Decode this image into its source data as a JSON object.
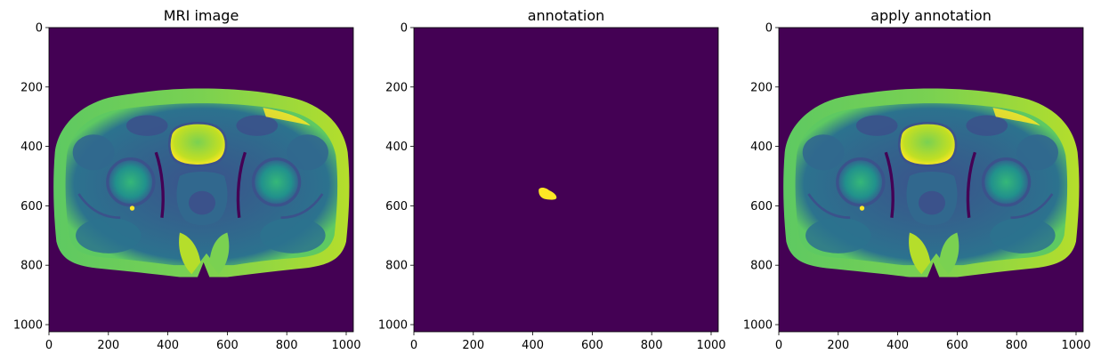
{
  "panels": [
    {
      "title": "MRI image",
      "kind": "mri"
    },
    {
      "title": "annotation",
      "kind": "mask"
    },
    {
      "title": "apply annotation",
      "kind": "mri"
    }
  ],
  "axes": {
    "x_ticks": [
      "0",
      "200",
      "400",
      "600",
      "800",
      "1000"
    ],
    "y_ticks": [
      "0",
      "200",
      "400",
      "600",
      "800",
      "1000"
    ],
    "range": [
      0,
      1024
    ]
  },
  "colors": {
    "background": "#440154",
    "bright": "#fde725",
    "mid_green": "#35b779",
    "teal": "#21918c",
    "blue": "#31688e",
    "dark_blue": "#3b528b"
  },
  "annotation_region": {
    "x_center": 450,
    "y_center": 560
  }
}
